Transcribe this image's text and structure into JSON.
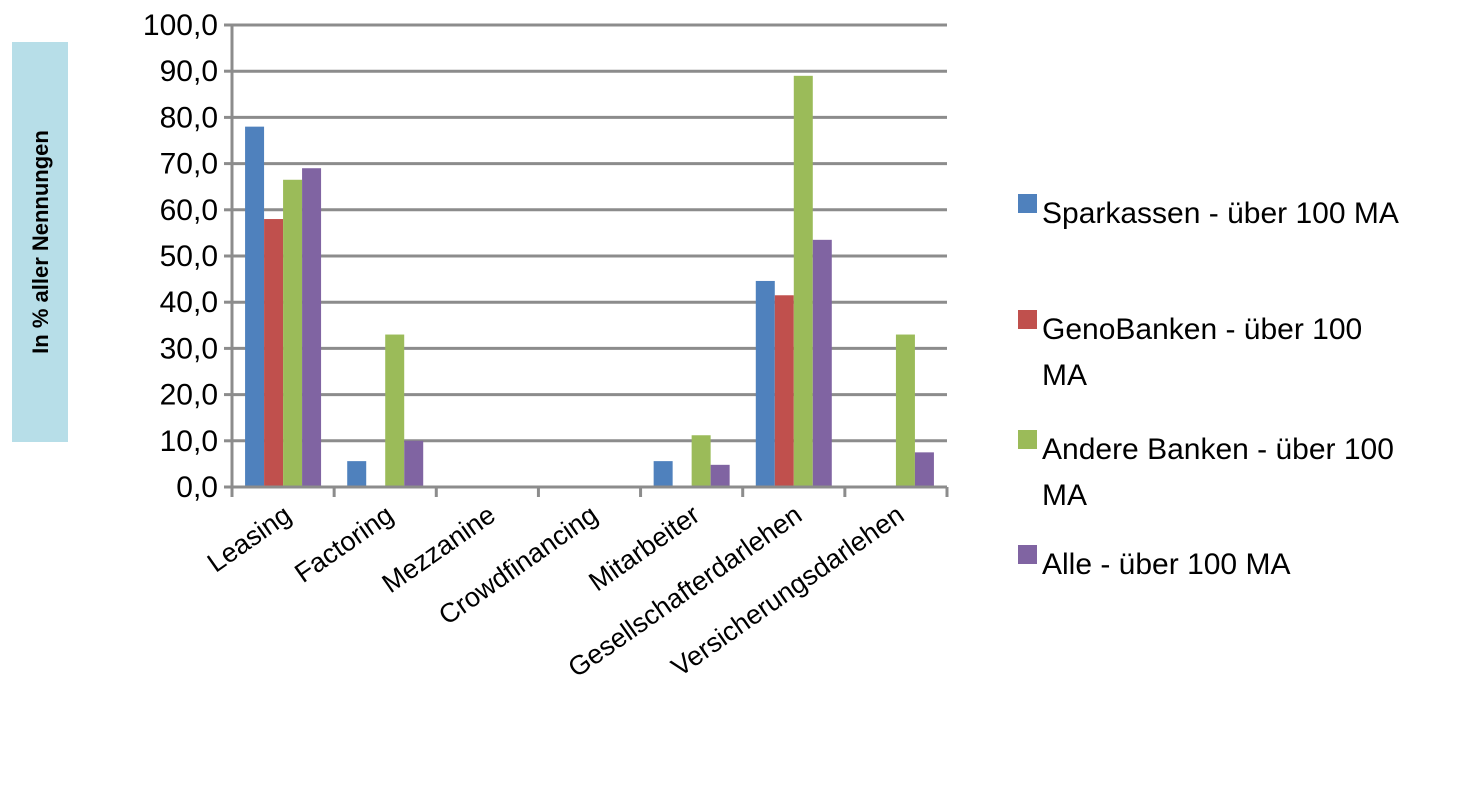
{
  "chart_data": {
    "type": "bar",
    "ylabel": "In % aller Nennungen",
    "ylim": [
      0,
      100
    ],
    "yticks": [
      "0,0",
      "10,0",
      "20,0",
      "30,0",
      "40,0",
      "50,0",
      "60,0",
      "70,0",
      "80,0",
      "90,0",
      "100,0"
    ],
    "grid": true,
    "legend_position": "right",
    "categories": [
      "Leasing",
      "Factoring",
      "Mezzanine",
      "Crowdfinancing",
      "Mitarbeiter",
      "Gesellschafterdarlehen",
      "Versicherungsdarlehen"
    ],
    "series": [
      {
        "name": "Sparkassen - über 100 MA",
        "legend_lines": [
          "Sparkassen - über 100 MA"
        ],
        "color": "#4F81BD",
        "values": [
          78.0,
          5.6,
          0,
          0,
          5.6,
          44.6,
          0
        ]
      },
      {
        "name": "GenoBanken - über 100 MA",
        "legend_lines": [
          "GenoBanken - über 100",
          "MA"
        ],
        "color": "#C0504D",
        "values": [
          58.0,
          0,
          0,
          0,
          0,
          41.5,
          0
        ]
      },
      {
        "name": "Andere Banken - über 100 MA",
        "legend_lines": [
          "Andere Banken - über 100",
          "MA"
        ],
        "color": "#9BBB59",
        "values": [
          66.5,
          33.0,
          0,
          0,
          11.2,
          89.0,
          33.0
        ]
      },
      {
        "name": "Alle - über 100 MA",
        "legend_lines": [
          "Alle - über 100 MA"
        ],
        "color": "#8064A2",
        "values": [
          69.0,
          10.0,
          0,
          0,
          4.8,
          53.5,
          7.5
        ]
      }
    ]
  }
}
